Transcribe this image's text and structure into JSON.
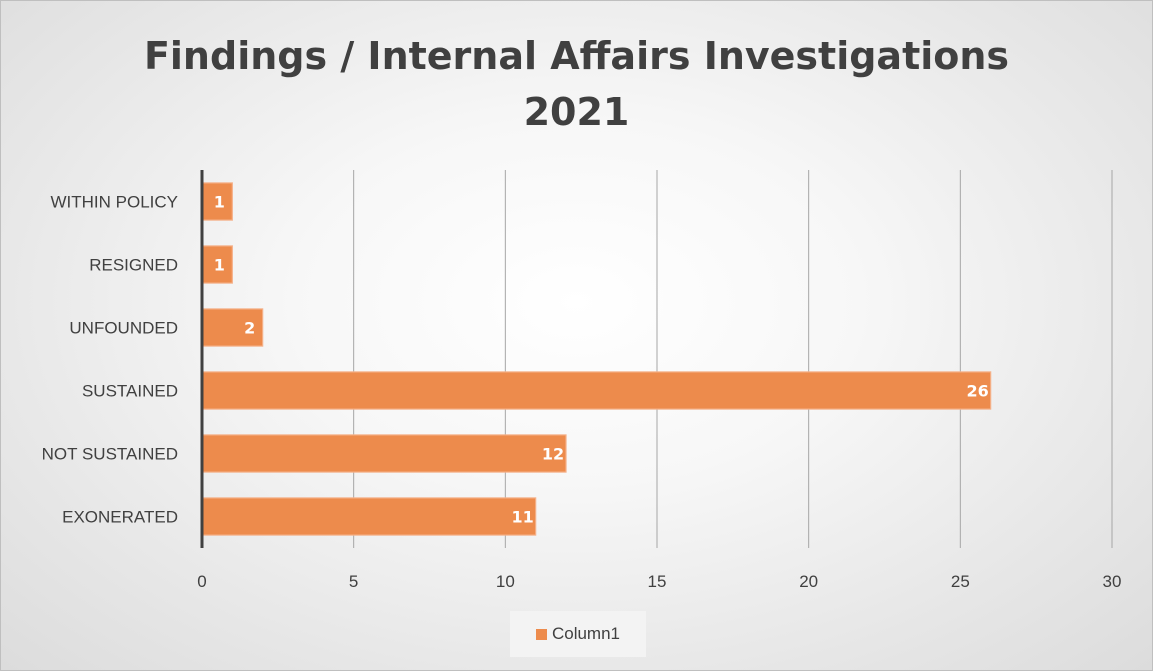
{
  "chart_data": {
    "type": "bar",
    "orientation": "horizontal",
    "title": "Findings / Internal Affairs Investigations 2021",
    "title_lines": [
      "Findings / Internal Affairs Investigations",
      "2021"
    ],
    "categories": [
      "WITHIN POLICY",
      "RESIGNED",
      "UNFOUNDED",
      "SUSTAINED",
      "NOT SUSTAINED",
      "EXONERATED"
    ],
    "series": [
      {
        "name": "Column1",
        "values": [
          1,
          1,
          2,
          26,
          12,
          11
        ],
        "color": "#ed8b4c"
      }
    ],
    "xlim": [
      0,
      30
    ],
    "xticks": [
      0,
      5,
      10,
      15,
      20,
      25,
      30
    ],
    "xlabel": "",
    "ylabel": "",
    "data_labels": true,
    "grid": "vertical",
    "legend": "bottom"
  }
}
